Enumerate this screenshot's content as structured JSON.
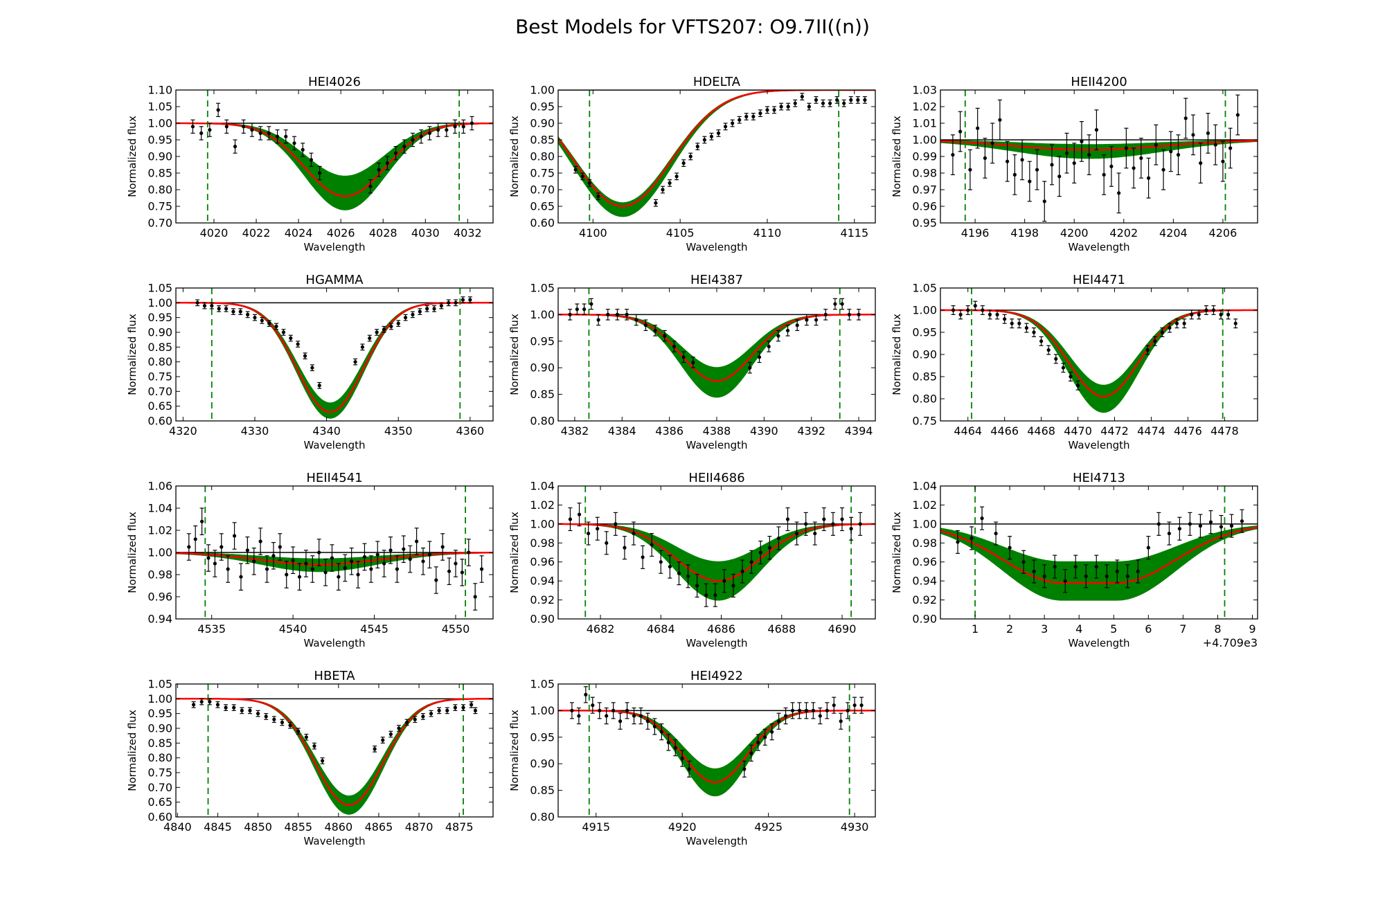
{
  "title": "Best Models for VFTS207: O9.7II((n))",
  "colors": {
    "band": "#008000",
    "best_model": "#ff0000",
    "continuum": "#000000",
    "data_points": "#000000",
    "window_lines": "#008000"
  },
  "chart_data": [
    {
      "type": "line",
      "title": "HEI4026",
      "xlabel": "Wavelength",
      "ylabel": "Normalized flux",
      "xlim": [
        4018.2,
        4033.2
      ],
      "ylim": [
        0.7,
        1.1
      ],
      "xticks": [
        4020,
        4022,
        4024,
        4026,
        4028,
        4030,
        4032
      ],
      "yticks": [
        0.7,
        0.75,
        0.8,
        0.85,
        0.9,
        0.95,
        1.0,
        1.05,
        1.1
      ],
      "window": [
        4019.7,
        4031.6
      ],
      "line_center": 4026.2,
      "line_width": 1.9,
      "best_depth": 0.22,
      "band_depth_min": 0.16,
      "band_depth_max": 0.26,
      "data_x": [
        4019.0,
        4019.4,
        4019.8,
        4020.2,
        4020.6,
        4021.0,
        4021.4,
        4021.8,
        4022.2,
        4022.6,
        4023.0,
        4023.4,
        4023.8,
        4024.2,
        4024.6,
        4025.0,
        4027.4,
        4027.8,
        4028.2,
        4028.6,
        4029.0,
        4029.4,
        4029.8,
        4030.2,
        4030.6,
        4031.0,
        4031.4,
        4031.8,
        4032.2
      ],
      "data_y": [
        0.99,
        0.97,
        0.98,
        1.04,
        0.99,
        0.93,
        0.99,
        0.98,
        0.97,
        0.97,
        0.96,
        0.96,
        0.94,
        0.92,
        0.89,
        0.85,
        0.81,
        0.86,
        0.88,
        0.91,
        0.93,
        0.95,
        0.96,
        0.97,
        0.98,
        0.98,
        0.99,
        0.99,
        1.0
      ],
      "err": 0.02
    },
    {
      "type": "line",
      "title": "HDELTA",
      "xlabel": "Wavelength",
      "ylabel": "Normalized flux",
      "xlim": [
        4098.0,
        4116.2
      ],
      "ylim": [
        0.6,
        1.0
      ],
      "xticks": [
        4100,
        4105,
        4110,
        4115
      ],
      "yticks": [
        0.6,
        0.65,
        0.7,
        0.75,
        0.8,
        0.85,
        0.9,
        0.95,
        1.0
      ],
      "window": [
        4099.8,
        4114.1
      ],
      "line_center": 4101.7,
      "line_width": 2.8,
      "best_depth": 0.35,
      "band_depth_min": 0.34,
      "band_depth_max": 0.38,
      "data_x": [
        4099.0,
        4099.4,
        4099.8,
        4100.3,
        4103.6,
        4104.0,
        4104.4,
        4104.8,
        4105.2,
        4105.6,
        4106.0,
        4106.4,
        4106.8,
        4107.2,
        4107.6,
        4108.0,
        4108.4,
        4108.8,
        4109.2,
        4109.6,
        4110.0,
        4110.4,
        4110.8,
        4111.2,
        4111.6,
        4112.0,
        4112.4,
        4112.8,
        4113.2,
        4113.6,
        4114.0,
        4114.4,
        4114.8,
        4115.2,
        4115.6
      ],
      "data_y": [
        0.76,
        0.74,
        0.72,
        0.68,
        0.66,
        0.7,
        0.72,
        0.74,
        0.78,
        0.8,
        0.83,
        0.85,
        0.86,
        0.87,
        0.89,
        0.9,
        0.91,
        0.92,
        0.92,
        0.93,
        0.94,
        0.94,
        0.95,
        0.95,
        0.96,
        0.98,
        0.95,
        0.97,
        0.96,
        0.96,
        0.97,
        0.96,
        0.97,
        0.97,
        0.97
      ],
      "err": 0.01
    },
    {
      "type": "line",
      "title": "HEII4200",
      "xlabel": "Wavelength",
      "ylabel": "Normalized flux",
      "xlim": [
        4194.6,
        4207.4
      ],
      "ylim": [
        0.95,
        1.03
      ],
      "xticks": [
        4196,
        4198,
        4200,
        4202,
        4204,
        4206
      ],
      "yticks": [
        0.95,
        0.96,
        0.97,
        0.98,
        0.99,
        1.0,
        1.01,
        1.02,
        1.03
      ],
      "window": [
        4195.6,
        4206.1
      ],
      "line_center": 4200.6,
      "line_width": 3.0,
      "best_depth": 0.006,
      "band_depth_min": 0.003,
      "band_depth_max": 0.011,
      "data_x": [
        4195.1,
        4195.4,
        4195.8,
        4196.1,
        4196.4,
        4196.7,
        4197.0,
        4197.3,
        4197.6,
        4197.9,
        4198.2,
        4198.5,
        4198.8,
        4199.1,
        4199.4,
        4199.7,
        4200.0,
        4200.3,
        4200.6,
        4200.9,
        4201.2,
        4201.5,
        4201.8,
        4202.1,
        4202.4,
        4202.7,
        4203.0,
        4203.3,
        4203.6,
        4203.9,
        4204.2,
        4204.5,
        4204.8,
        4205.1,
        4205.4,
        4205.7,
        4206.0,
        4206.3,
        4206.6
      ],
      "data_y": [
        0.991,
        1.005,
        0.982,
        1.007,
        0.989,
        0.998,
        1.012,
        0.987,
        0.979,
        0.988,
        0.975,
        0.982,
        0.963,
        0.985,
        0.978,
        0.992,
        0.986,
        0.999,
        0.991,
        1.006,
        0.979,
        0.984,
        0.968,
        0.995,
        0.983,
        0.989,
        0.977,
        0.997,
        0.982,
        0.993,
        0.991,
        1.013,
        1.003,
        0.986,
        1.004,
        0.997,
        0.987,
        0.995,
        1.015
      ],
      "err": 0.012
    },
    {
      "type": "line",
      "title": "HGAMMA",
      "xlabel": "Wavelength",
      "ylabel": "Normalized flux",
      "xlim": [
        4319.0,
        4363.2
      ],
      "ylim": [
        0.6,
        1.05
      ],
      "xticks": [
        4320,
        4330,
        4340,
        4350,
        4360
      ],
      "yticks": [
        0.6,
        0.65,
        0.7,
        0.75,
        0.8,
        0.85,
        0.9,
        0.95,
        1.0,
        1.05
      ],
      "window": [
        4324.0,
        4358.6
      ],
      "line_center": 4340.5,
      "line_width": 4.6,
      "best_depth": 0.37,
      "band_depth_min": 0.34,
      "band_depth_max": 0.39,
      "data_x": [
        4322.0,
        4323.0,
        4324.0,
        4325.0,
        4326.0,
        4327.0,
        4328.0,
        4329.0,
        4330.0,
        4331.0,
        4332.0,
        4333.0,
        4334.0,
        4335.0,
        4336.0,
        4337.0,
        4338.0,
        4339.0,
        4344.0,
        4345.0,
        4346.0,
        4347.0,
        4348.0,
        4349.0,
        4350.0,
        4351.0,
        4352.0,
        4353.0,
        4354.0,
        4355.0,
        4356.0,
        4357.0,
        4358.0,
        4359.0,
        4360.0
      ],
      "data_y": [
        1.0,
        0.99,
        0.99,
        0.98,
        0.98,
        0.97,
        0.97,
        0.96,
        0.95,
        0.94,
        0.93,
        0.92,
        0.9,
        0.88,
        0.86,
        0.82,
        0.78,
        0.72,
        0.8,
        0.85,
        0.88,
        0.9,
        0.91,
        0.92,
        0.93,
        0.95,
        0.96,
        0.97,
        0.98,
        0.98,
        0.99,
        1.0,
        1.0,
        1.01,
        1.01
      ],
      "err": 0.01
    },
    {
      "type": "line",
      "title": "HEI4387",
      "xlabel": "Wavelength",
      "ylabel": "Normalized flux",
      "xlim": [
        4381.3,
        4394.7
      ],
      "ylim": [
        0.8,
        1.05
      ],
      "xticks": [
        4382,
        4384,
        4386,
        4388,
        4390,
        4392,
        4394
      ],
      "yticks": [
        0.8,
        0.85,
        0.9,
        0.95,
        1.0,
        1.05
      ],
      "window": [
        4382.6,
        4393.2
      ],
      "line_center": 4388.0,
      "line_width": 1.5,
      "best_depth": 0.125,
      "band_depth_min": 0.1,
      "band_depth_max": 0.155,
      "data_x": [
        4381.8,
        4382.1,
        4382.4,
        4382.7,
        4383.0,
        4383.4,
        4383.8,
        4384.2,
        4384.6,
        4385.0,
        4385.4,
        4385.8,
        4386.2,
        4386.6,
        4387.0,
        4389.4,
        4389.8,
        4390.2,
        4390.6,
        4391.0,
        4391.4,
        4391.8,
        4392.2,
        4392.6,
        4393.0,
        4393.3,
        4393.6,
        4394.0
      ],
      "data_y": [
        1.0,
        1.01,
        1.01,
        1.02,
        0.99,
        1.0,
        1.0,
        1.0,
        0.99,
        0.98,
        0.97,
        0.96,
        0.94,
        0.92,
        0.91,
        0.9,
        0.92,
        0.94,
        0.96,
        0.97,
        0.98,
        0.99,
        0.99,
        1.0,
        1.02,
        1.02,
        1.0,
        1.0
      ],
      "err": 0.01
    },
    {
      "type": "line",
      "title": "HEI4471",
      "xlabel": "Wavelength",
      "ylabel": "Normalized flux",
      "xlim": [
        4462.5,
        4479.8
      ],
      "ylim": [
        0.75,
        1.05
      ],
      "xticks": [
        4464,
        4466,
        4468,
        4470,
        4472,
        4474,
        4476,
        4478
      ],
      "yticks": [
        0.75,
        0.8,
        0.85,
        0.9,
        0.95,
        1.0,
        1.05
      ],
      "window": [
        4464.2,
        4477.9
      ],
      "line_center": 4471.4,
      "line_width": 1.9,
      "best_depth": 0.195,
      "band_depth_min": 0.17,
      "band_depth_max": 0.23,
      "data_x": [
        4463.2,
        4463.6,
        4464.0,
        4464.4,
        4464.8,
        4465.2,
        4465.6,
        4466.0,
        4466.4,
        4466.8,
        4467.2,
        4467.6,
        4468.0,
        4468.4,
        4468.8,
        4469.2,
        4469.6,
        4470.0,
        4473.8,
        4474.2,
        4474.6,
        4475.0,
        4475.4,
        4475.8,
        4476.2,
        4476.6,
        4477.0,
        4477.4,
        4477.8,
        4478.2,
        4478.6
      ],
      "data_y": [
        1.0,
        0.99,
        1.0,
        1.01,
        1.0,
        0.99,
        0.99,
        0.98,
        0.97,
        0.97,
        0.96,
        0.95,
        0.93,
        0.91,
        0.89,
        0.87,
        0.85,
        0.83,
        0.91,
        0.93,
        0.95,
        0.96,
        0.97,
        0.97,
        0.99,
        0.99,
        1.0,
        1.0,
        0.99,
        0.99,
        0.97
      ],
      "err": 0.01
    },
    {
      "type": "line",
      "title": "HEII4541",
      "xlabel": "Wavelength",
      "ylabel": "Normalized flux",
      "xlim": [
        4532.8,
        4552.3
      ],
      "ylim": [
        0.94,
        1.06
      ],
      "xticks": [
        4535,
        4540,
        4545,
        4550
      ],
      "yticks": [
        0.94,
        0.96,
        0.98,
        1.0,
        1.02,
        1.04,
        1.06
      ],
      "window": [
        4534.6,
        4550.6
      ],
      "line_center": 4541.6,
      "line_width": 3.6,
      "best_depth": 0.011,
      "band_depth_min": 0.006,
      "band_depth_max": 0.017,
      "data_x": [
        4533.6,
        4534.0,
        4534.4,
        4534.8,
        4535.2,
        4535.6,
        4536.0,
        4536.4,
        4536.8,
        4537.2,
        4537.6,
        4538.0,
        4538.4,
        4538.8,
        4539.2,
        4539.6,
        4540.0,
        4540.4,
        4540.8,
        4541.2,
        4541.6,
        4542.0,
        4542.4,
        4542.8,
        4543.2,
        4543.6,
        4544.0,
        4544.4,
        4544.8,
        4545.2,
        4545.6,
        4546.0,
        4546.4,
        4546.8,
        4547.2,
        4547.6,
        4548.0,
        4548.4,
        4548.8,
        4549.2,
        4549.6,
        4550.0,
        4550.4,
        4550.8,
        4551.2,
        4551.6
      ],
      "data_y": [
        1.005,
        1.012,
        1.028,
        0.995,
        0.99,
        1.005,
        0.985,
        1.015,
        0.978,
        1.002,
        0.992,
        1.01,
        0.985,
        0.997,
        1.005,
        0.98,
        0.993,
        0.978,
        0.99,
        0.985,
        1.0,
        0.982,
        0.995,
        0.978,
        0.986,
        0.992,
        0.98,
        0.996,
        0.985,
        0.998,
        0.99,
        1.002,
        0.985,
        1.003,
        0.994,
        1.01,
        0.992,
        0.998,
        0.975,
        1.005,
        0.983,
        0.99,
        0.982,
        1.0,
        0.96,
        0.985
      ],
      "err": 0.012
    },
    {
      "type": "line",
      "title": "HEII4686",
      "xlabel": "Wavelength",
      "ylabel": "Normalized flux",
      "xlim": [
        4680.6,
        4691.1
      ],
      "ylim": [
        0.9,
        1.04
      ],
      "xticks": [
        4682,
        4684,
        4686,
        4688,
        4690
      ],
      "yticks": [
        0.9,
        0.92,
        0.94,
        0.96,
        0.98,
        1.0,
        1.02,
        1.04
      ],
      "window": [
        4681.5,
        4690.3
      ],
      "line_center": 4685.9,
      "line_width": 1.4,
      "best_depth": 0.06,
      "band_depth_min": 0.04,
      "band_depth_max": 0.08,
      "data_x": [
        4681.0,
        4681.3,
        4681.6,
        4681.9,
        4682.2,
        4682.5,
        4682.8,
        4683.1,
        4683.4,
        4683.7,
        4684.0,
        4684.3,
        4684.6,
        4684.9,
        4685.2,
        4685.5,
        4685.8,
        4686.1,
        4686.4,
        4686.7,
        4687.0,
        4687.3,
        4687.6,
        4687.9,
        4688.2,
        4688.5,
        4688.8,
        4689.1,
        4689.4,
        4689.7,
        4690.0,
        4690.3,
        4690.6
      ],
      "data_y": [
        1.005,
        1.01,
        0.99,
        0.995,
        0.98,
        1.0,
        0.975,
        0.99,
        0.965,
        0.978,
        0.96,
        0.955,
        0.948,
        0.945,
        0.935,
        0.925,
        0.925,
        0.94,
        0.935,
        0.95,
        0.96,
        0.97,
        0.975,
        0.985,
        1.005,
        0.99,
        1.0,
        0.99,
        1.005,
        1.0,
        1.005,
        0.995,
        1.0
      ],
      "err": 0.012
    },
    {
      "type": "line",
      "title": "HEI4713",
      "xlabel": "Wavelength",
      "ylabel": "Normalized flux",
      "x_offset_label": "+4.709e3",
      "xlim": [
        0.0,
        9.15
      ],
      "ylim": [
        0.9,
        1.04
      ],
      "xticks": [
        1,
        2,
        3,
        4,
        5,
        6,
        7,
        8,
        9
      ],
      "yticks": [
        0.9,
        0.92,
        0.94,
        0.96,
        0.98,
        1.0,
        1.02,
        1.04
      ],
      "window": [
        1.0,
        8.2
      ],
      "line_center": 4.3,
      "line_width": 1.7,
      "line_flat": 1.6,
      "best_depth": 0.062,
      "band_depth_min": 0.04,
      "band_depth_max": 0.08,
      "data_x": [
        0.5,
        0.9,
        1.2,
        1.6,
        2.0,
        2.4,
        2.7,
        3.0,
        3.3,
        3.6,
        3.9,
        4.2,
        4.5,
        4.8,
        5.1,
        5.4,
        5.7,
        6.0,
        6.3,
        6.6,
        6.9,
        7.2,
        7.5,
        7.8,
        8.1,
        8.4,
        8.7
      ],
      "data_y": [
        0.981,
        0.985,
        1.006,
        0.99,
        0.975,
        0.96,
        0.95,
        0.945,
        0.955,
        0.94,
        0.955,
        0.945,
        0.955,
        0.945,
        0.95,
        0.945,
        0.95,
        0.975,
        1.0,
        0.99,
        0.995,
        1.0,
        0.998,
        1.002,
        0.997,
        0.998,
        1.003
      ],
      "err": 0.012
    },
    {
      "type": "line",
      "title": "HBETA",
      "xlabel": "Wavelength",
      "ylabel": "Normalized flux",
      "xlim": [
        4839.8,
        4879.2
      ],
      "ylim": [
        0.6,
        1.05
      ],
      "xticks": [
        4840,
        4845,
        4850,
        4855,
        4860,
        4865,
        4870,
        4875
      ],
      "yticks": [
        0.6,
        0.65,
        0.7,
        0.75,
        0.8,
        0.85,
        0.9,
        0.95,
        1.0,
        1.05
      ],
      "window": [
        4843.8,
        4875.5
      ],
      "line_center": 4861.3,
      "line_width": 4.2,
      "best_depth": 0.36,
      "band_depth_min": 0.33,
      "band_depth_max": 0.39,
      "data_x": [
        4842.0,
        4843.0,
        4844.0,
        4845.0,
        4846.0,
        4847.0,
        4848.0,
        4849.0,
        4850.0,
        4851.0,
        4852.0,
        4853.0,
        4854.0,
        4855.0,
        4856.0,
        4857.0,
        4858.0,
        4864.5,
        4865.5,
        4866.5,
        4867.5,
        4868.5,
        4869.5,
        4870.5,
        4871.5,
        4872.5,
        4873.5,
        4874.5,
        4875.5,
        4876.5,
        4877.0
      ],
      "data_y": [
        0.98,
        0.99,
        0.99,
        0.98,
        0.97,
        0.97,
        0.96,
        0.96,
        0.95,
        0.94,
        0.93,
        0.92,
        0.91,
        0.89,
        0.87,
        0.84,
        0.79,
        0.83,
        0.86,
        0.88,
        0.9,
        0.92,
        0.93,
        0.94,
        0.95,
        0.96,
        0.96,
        0.97,
        0.97,
        0.98,
        0.96
      ],
      "err": 0.01
    },
    {
      "type": "line",
      "title": "HEI4922",
      "xlabel": "Wavelength",
      "ylabel": "Normalized flux",
      "xlim": [
        4912.8,
        4931.2
      ],
      "ylim": [
        0.8,
        1.05
      ],
      "xticks": [
        4915,
        4920,
        4925,
        4930
      ],
      "yticks": [
        0.8,
        0.85,
        0.9,
        0.95,
        1.0,
        1.05
      ],
      "window": [
        4914.6,
        4929.7
      ],
      "line_center": 4921.9,
      "line_width": 1.9,
      "best_depth": 0.135,
      "band_depth_min": 0.11,
      "band_depth_max": 0.16,
      "data_x": [
        4913.6,
        4914.0,
        4914.4,
        4914.8,
        4915.2,
        4915.6,
        4916.0,
        4916.4,
        4916.8,
        4917.2,
        4917.6,
        4918.0,
        4918.4,
        4918.8,
        4919.2,
        4919.6,
        4920.0,
        4920.4,
        4923.6,
        4924.0,
        4924.4,
        4924.8,
        4925.2,
        4925.6,
        4926.0,
        4926.4,
        4926.8,
        4927.2,
        4927.6,
        4928.0,
        4928.4,
        4928.8,
        4929.2,
        4929.6,
        4930.0,
        4930.4
      ],
      "data_y": [
        1.0,
        0.99,
        1.03,
        1.01,
        1.0,
        0.99,
        1.0,
        0.98,
        1.0,
        0.99,
        0.99,
        0.98,
        0.97,
        0.96,
        0.94,
        0.93,
        0.91,
        0.89,
        0.89,
        0.92,
        0.94,
        0.95,
        0.96,
        0.98,
        0.99,
        1.0,
        1.0,
        1.0,
        1.0,
        0.99,
        1.0,
        1.01,
        0.98,
        1.0,
        1.01,
        1.01
      ],
      "err": 0.015
    }
  ]
}
